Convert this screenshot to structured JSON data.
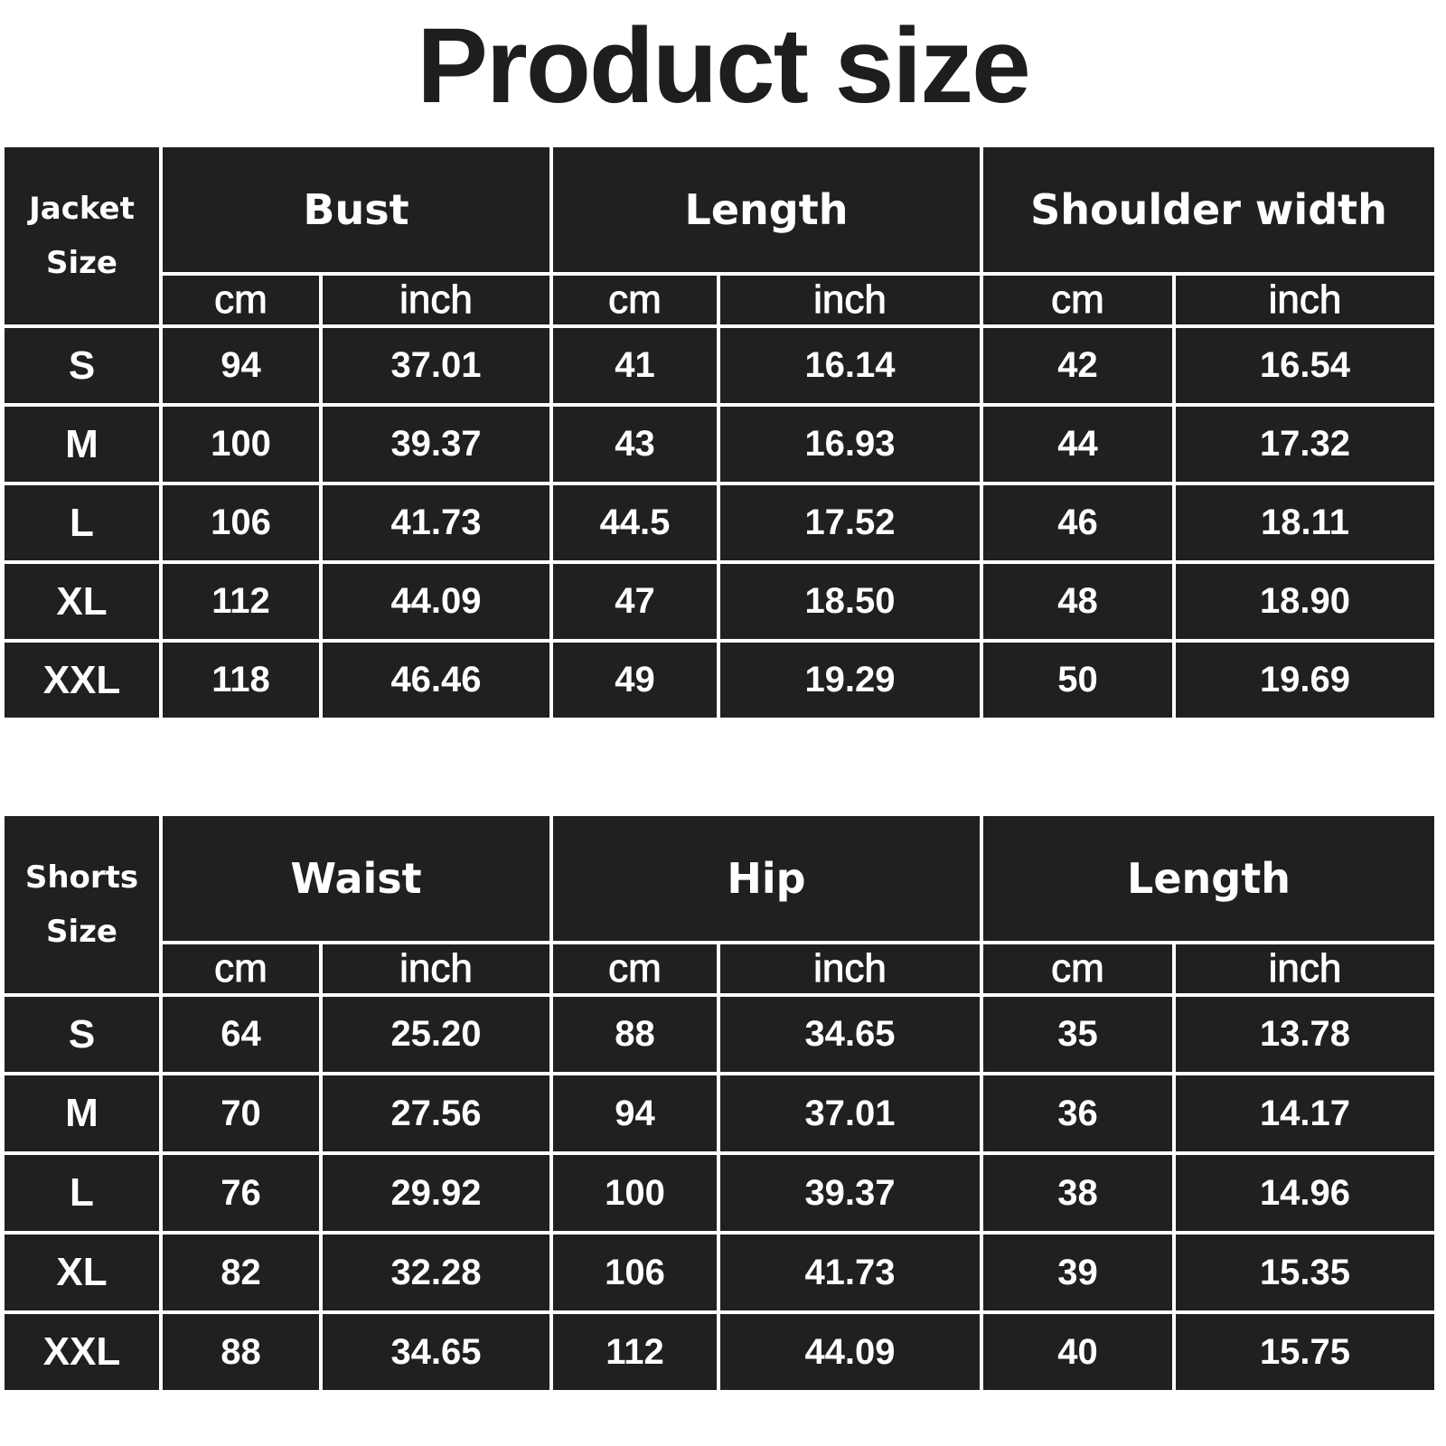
{
  "title": "Product size",
  "colors": {
    "cell": "#202020",
    "text": "#ffffff",
    "background": "#ffffff"
  },
  "tables": [
    {
      "size_header": "Jacket\nSize",
      "measures": [
        "Bust",
        "Length",
        "Shoulder width"
      ],
      "units": [
        "cm",
        "inch"
      ],
      "rows": [
        {
          "size": "S",
          "values": [
            "94",
            "37.01",
            "41",
            "16.14",
            "42",
            "16.54"
          ]
        },
        {
          "size": "M",
          "values": [
            "100",
            "39.37",
            "43",
            "16.93",
            "44",
            "17.32"
          ]
        },
        {
          "size": "L",
          "values": [
            "106",
            "41.73",
            "44.5",
            "17.52",
            "46",
            "18.11"
          ]
        },
        {
          "size": "XL",
          "values": [
            "112",
            "44.09",
            "47",
            "18.50",
            "48",
            "18.90"
          ]
        },
        {
          "size": "XXL",
          "values": [
            "118",
            "46.46",
            "49",
            "19.29",
            "50",
            "19.69"
          ]
        }
      ]
    },
    {
      "size_header": "Shorts\nSize",
      "measures": [
        "Waist",
        "Hip",
        "Length"
      ],
      "units": [
        "cm",
        "inch"
      ],
      "rows": [
        {
          "size": "S",
          "values": [
            "64",
            "25.20",
            "88",
            "34.65",
            "35",
            "13.78"
          ]
        },
        {
          "size": "M",
          "values": [
            "70",
            "27.56",
            "94",
            "37.01",
            "36",
            "14.17"
          ]
        },
        {
          "size": "L",
          "values": [
            "76",
            "29.92",
            "100",
            "39.37",
            "38",
            "14.96"
          ]
        },
        {
          "size": "XL",
          "values": [
            "82",
            "32.28",
            "106",
            "41.73",
            "39",
            "15.35"
          ]
        },
        {
          "size": "XXL",
          "values": [
            "88",
            "34.65",
            "112",
            "44.09",
            "40",
            "15.75"
          ]
        }
      ]
    }
  ]
}
